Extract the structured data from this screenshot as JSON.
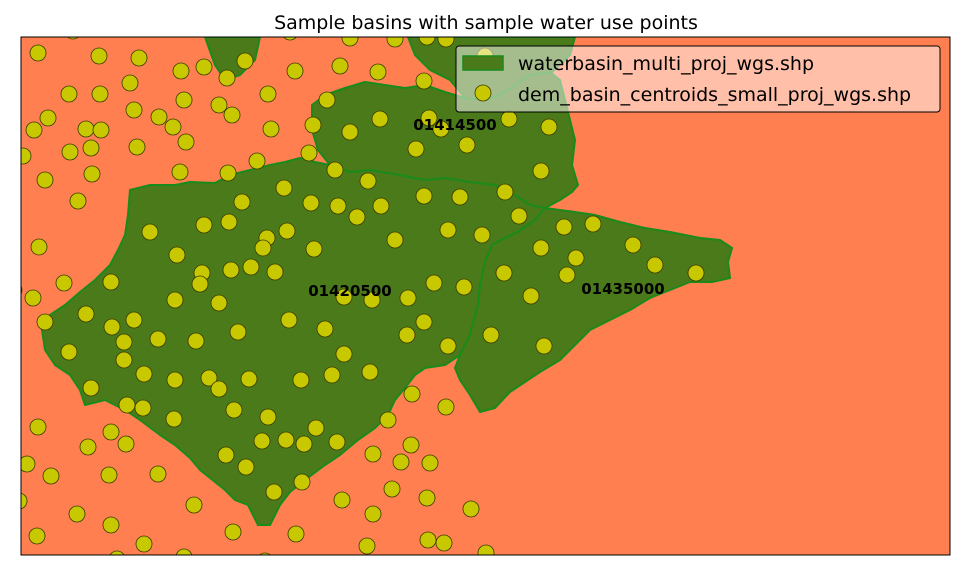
{
  "map": {
    "title": "Sample basins with sample water use points",
    "background_color": "#ff7f50",
    "basin_fill_color": "#4a7a1a",
    "basin_edge_color": "#1a8a1a",
    "point_fill_color": "#c8c800",
    "point_edge_color": "#3a3a00",
    "basins": [
      {
        "id": "01414500",
        "label": "01414500"
      },
      {
        "id": "01420500",
        "label": "01420500"
      },
      {
        "id": "01435000",
        "label": "01435000"
      }
    ],
    "legend": {
      "position": "upper-right",
      "entries": [
        {
          "label": "waterbasin_multi_proj_wgs.shp",
          "symbol": "patch"
        },
        {
          "label": "dem_basin_centroids_small_proj_wgs.shp",
          "symbol": "marker"
        }
      ]
    }
  }
}
